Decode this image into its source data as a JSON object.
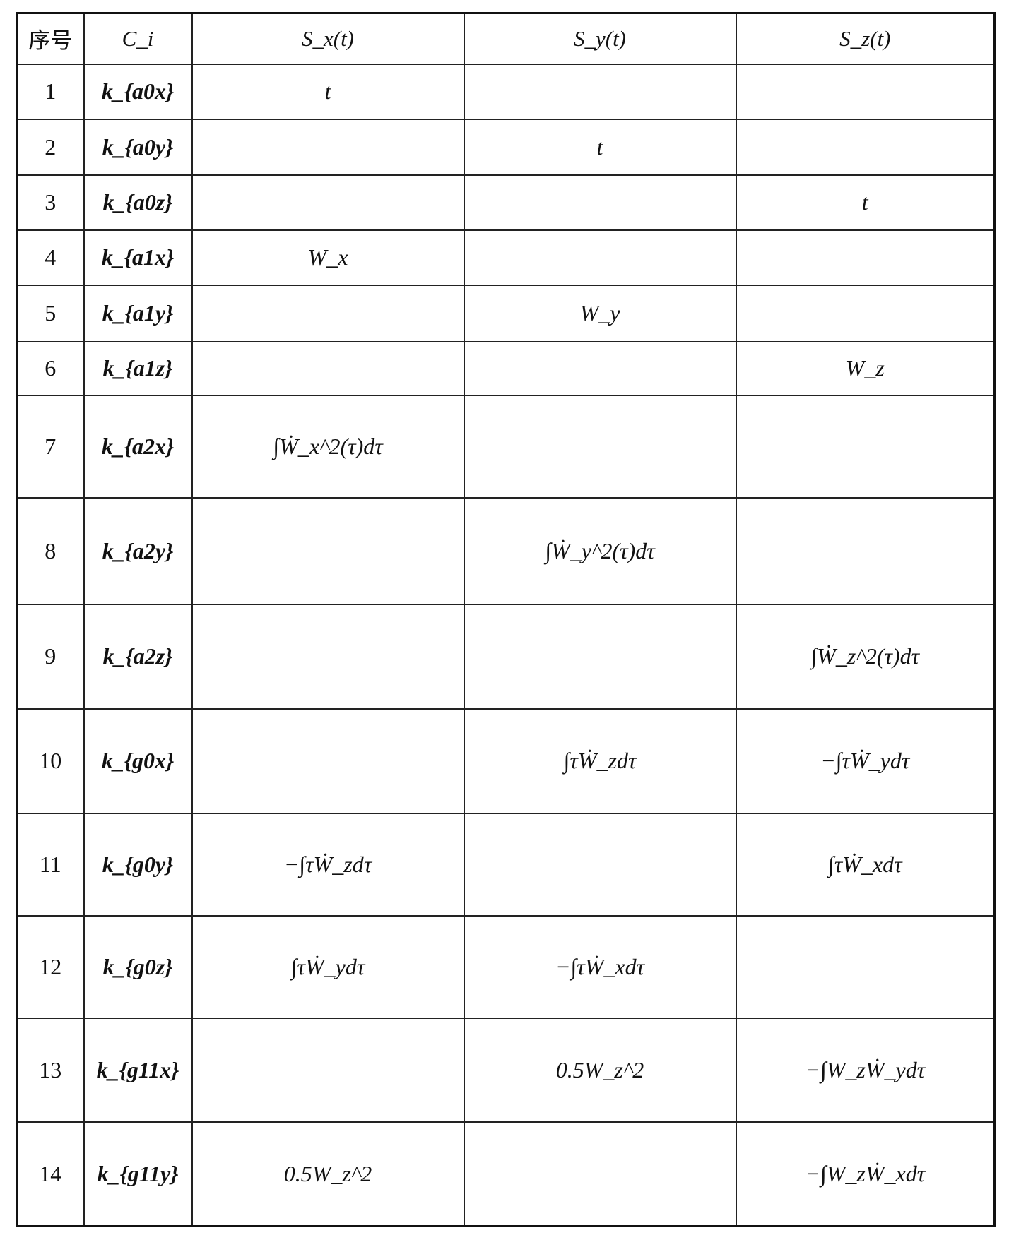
{
  "table": {
    "headers": [
      "序号",
      "C_i",
      "S_x(t)",
      "S_y(t)",
      "S_z(t)"
    ],
    "rows": [
      {
        "no": "1",
        "c": "k_{a0x}",
        "sx": "t",
        "sy": "",
        "sz": ""
      },
      {
        "no": "2",
        "c": "k_{a0y}",
        "sx": "",
        "sy": "t",
        "sz": ""
      },
      {
        "no": "3",
        "c": "k_{a0z}",
        "sx": "",
        "sy": "",
        "sz": "t"
      },
      {
        "no": "4",
        "c": "k_{a1x}",
        "sx": "W_x",
        "sy": "",
        "sz": ""
      },
      {
        "no": "5",
        "c": "k_{a1y}",
        "sx": "",
        "sy": "W_y",
        "sz": ""
      },
      {
        "no": "6",
        "c": "k_{a1z}",
        "sx": "",
        "sy": "",
        "sz": "W_z"
      },
      {
        "no": "7",
        "c": "k_{a2x}",
        "sx": "∫Ẇ_x^2(τ)dτ",
        "sy": "",
        "sz": ""
      },
      {
        "no": "8",
        "c": "k_{a2y}",
        "sx": "",
        "sy": "∫Ẇ_y^2(τ)dτ",
        "sz": ""
      },
      {
        "no": "9",
        "c": "k_{a2z}",
        "sx": "",
        "sy": "",
        "sz": "∫Ẇ_z^2(τ)dτ"
      },
      {
        "no": "10",
        "c": "k_{g0x}",
        "sx": "",
        "sy": "∫τẆ_zdτ",
        "sz": "−∫τẆ_ydτ"
      },
      {
        "no": "11",
        "c": "k_{g0y}",
        "sx": "−∫τẆ_zdτ",
        "sy": "",
        "sz": "∫τẆ_xdτ"
      },
      {
        "no": "12",
        "c": "k_{g0z}",
        "sx": "∫τẆ_ydτ",
        "sy": "−∫τẆ_xdτ",
        "sz": ""
      },
      {
        "no": "13",
        "c": "k_{g11x}",
        "sx": "",
        "sy": "0.5W_z^2",
        "sz": "−∫W_zẆ_ydτ"
      },
      {
        "no": "14",
        "c": "k_{g11y}",
        "sx": "0.5W_z^2",
        "sy": "",
        "sz": "−∫W_zẆ_xdτ"
      }
    ]
  }
}
